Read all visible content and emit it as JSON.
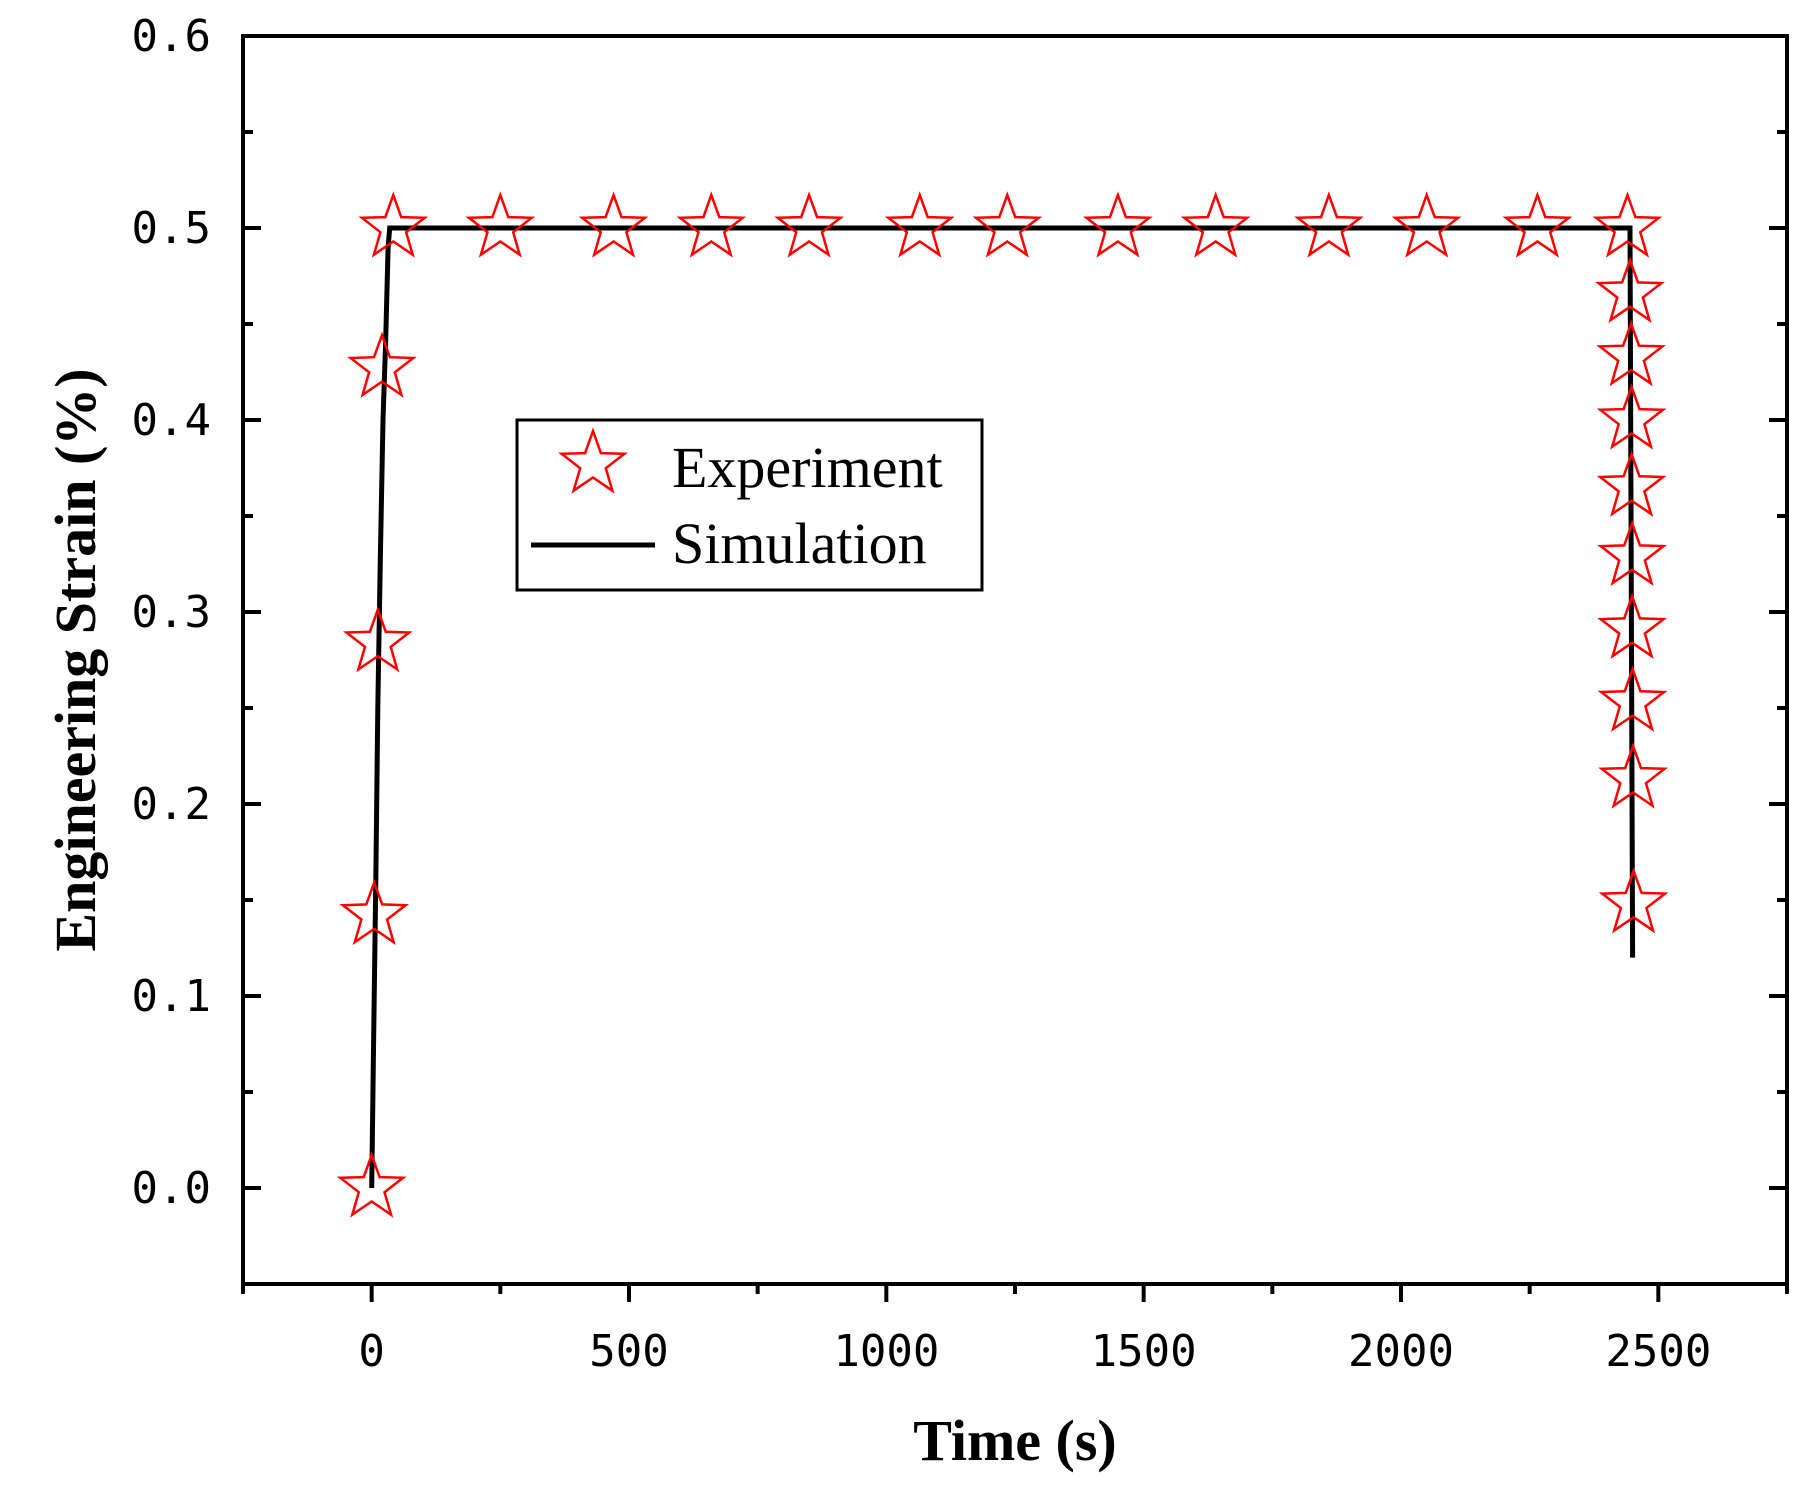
{
  "chart_data": {
    "type": "scatter",
    "title": "",
    "xlabel": "Time (s)",
    "ylabel": "Engineering Strain (%)",
    "xlim": [
      -250,
      2750
    ],
    "ylim": [
      -0.05,
      0.6
    ],
    "xticks": [
      0,
      500,
      1000,
      1500,
      2000,
      2500
    ],
    "xtick_labels": [
      "0",
      "500",
      "1000",
      "1500",
      "2000",
      "2500"
    ],
    "yticks": [
      0.0,
      0.1,
      0.2,
      0.3,
      0.4,
      0.5,
      0.6
    ],
    "ytick_labels": [
      "0.0",
      "0.1",
      "0.2",
      "0.3",
      "0.4",
      "0.5",
      "0.6"
    ],
    "grid": false,
    "legend_position": "upper-left-center",
    "series": [
      {
        "name": "Experiment",
        "kind": "markers",
        "marker": "star-outline",
        "color": "#ff0000",
        "x": [
          0,
          5,
          12,
          20,
          42,
          250,
          470,
          660,
          850,
          1065,
          1235,
          1450,
          1640,
          1860,
          2050,
          2265,
          2440,
          2445,
          2447,
          2448,
          2448,
          2449,
          2449,
          2450,
          2451,
          2452
        ],
        "y": [
          0.0,
          0.142,
          0.284,
          0.427,
          0.5,
          0.5,
          0.5,
          0.5,
          0.5,
          0.5,
          0.5,
          0.5,
          0.5,
          0.5,
          0.5,
          0.5,
          0.5,
          0.466,
          0.433,
          0.4,
          0.365,
          0.329,
          0.291,
          0.253,
          0.213,
          0.148
        ]
      },
      {
        "name": "Simulation",
        "kind": "line",
        "color": "#000000",
        "x": [
          0,
          4,
          8,
          12,
          17,
          22,
          27,
          32,
          35,
          2445,
          2450
        ],
        "y": [
          0.0,
          0.08,
          0.16,
          0.25,
          0.33,
          0.4,
          0.44,
          0.49,
          0.5,
          0.5,
          0.12
        ]
      }
    ]
  },
  "colors": {
    "experiment": "#ff0000",
    "simulation": "#000000",
    "axes": "#000000"
  }
}
